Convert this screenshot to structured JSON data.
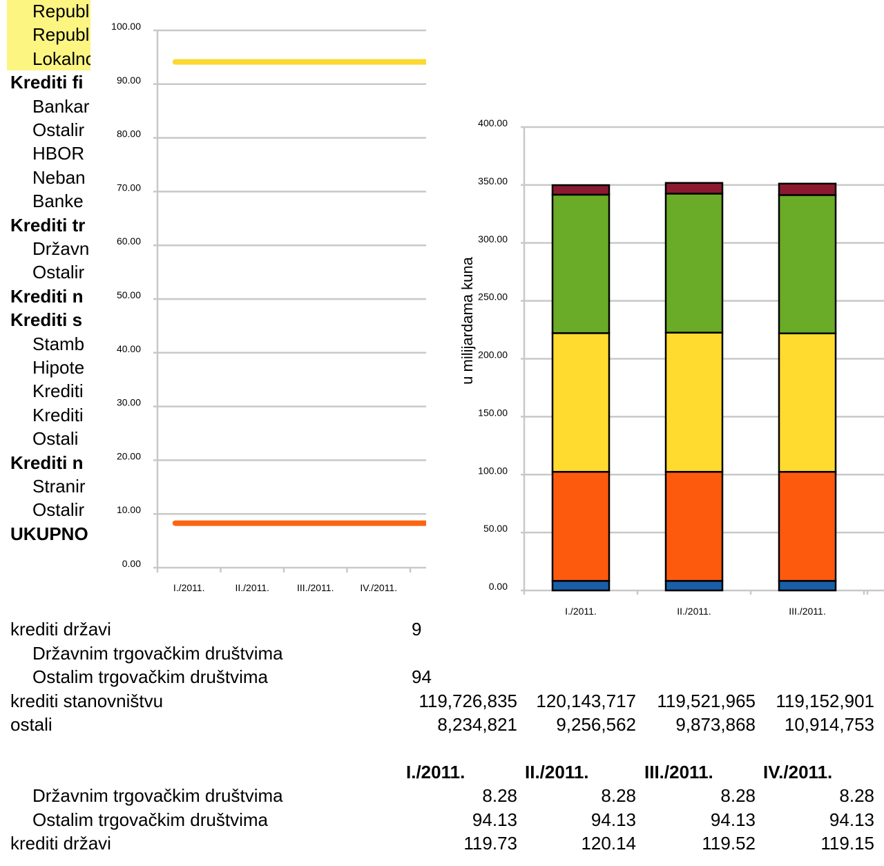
{
  "left_labels": [
    {
      "text": "Republic",
      "bold": false,
      "indent": true,
      "highlight": true
    },
    {
      "text": "Republic",
      "bold": false,
      "indent": true,
      "highlight": true
    },
    {
      "text": "Lokalno",
      "bold": false,
      "indent": true,
      "highlight": true
    },
    {
      "text": "Krediti fi",
      "bold": true,
      "indent": false
    },
    {
      "text": "Bankar",
      "bold": false,
      "indent": true
    },
    {
      "text": "Ostalir",
      "bold": false,
      "indent": true
    },
    {
      "text": "HBOR",
      "bold": false,
      "indent": true
    },
    {
      "text": "Neban",
      "bold": false,
      "indent": true
    },
    {
      "text": "Banke",
      "bold": false,
      "indent": true
    },
    {
      "text": "Krediti tr",
      "bold": true,
      "indent": false
    },
    {
      "text": "Državn",
      "bold": false,
      "indent": true
    },
    {
      "text": "Ostalir",
      "bold": false,
      "indent": true
    },
    {
      "text": "Krediti n",
      "bold": true,
      "indent": false
    },
    {
      "text": "Krediti s",
      "bold": true,
      "indent": false
    },
    {
      "text": "Stamb",
      "bold": false,
      "indent": true
    },
    {
      "text": "Hipote",
      "bold": false,
      "indent": true
    },
    {
      "text": "Krediti",
      "bold": false,
      "indent": true
    },
    {
      "text": "Krediti",
      "bold": false,
      "indent": true
    },
    {
      "text": "Ostali",
      "bold": false,
      "indent": true
    },
    {
      "text": "Krediti n",
      "bold": true,
      "indent": false
    },
    {
      "text": "Stranir",
      "bold": false,
      "indent": true
    },
    {
      "text": "Ostalir",
      "bold": false,
      "indent": true
    },
    {
      "text": "UKUPNO",
      "bold": true,
      "indent": false
    }
  ],
  "table1": {
    "rows": [
      {
        "label": "krediti državi",
        "indent": false,
        "values": [
          "",
          "",
          "",
          ""
        ],
        "partial": "9"
      },
      {
        "label": "Državnim trgovačkim društvima",
        "indent": true,
        "values": [
          "",
          "",
          "",
          ""
        ],
        "partial": ""
      },
      {
        "label": "Ostalim trgovačkim društvima",
        "indent": true,
        "values": [
          "",
          "",
          "",
          ""
        ],
        "partial": "94"
      },
      {
        "label": "krediti stanovništvu",
        "indent": false,
        "values": [
          "119,726,835",
          "120,143,717",
          "119,521,965",
          "119,152,901"
        ]
      },
      {
        "label": "ostali",
        "indent": false,
        "values": [
          "8,234,821",
          "9,256,562",
          "9,873,868",
          "10,914,753"
        ]
      }
    ]
  },
  "table2": {
    "headers": [
      "I./2011.",
      "II./2011.",
      "III./2011.",
      "IV./2011."
    ],
    "rows": [
      {
        "label": "Državnim trgovačkim društvima",
        "indent": true,
        "values": [
          "8.28",
          "8.28",
          "8.28",
          "8.28"
        ]
      },
      {
        "label": "Ostalim trgovačkim društvima",
        "indent": true,
        "values": [
          "94.13",
          "94.13",
          "94.13",
          "94.13"
        ]
      },
      {
        "label": "krediti državi",
        "indent": false,
        "values": [
          "119.73",
          "120.14",
          "119.52",
          "119.15"
        ]
      }
    ]
  },
  "chart_data": [
    {
      "type": "line",
      "x": [
        "I./2011.",
        "II./2011.",
        "III./2011.",
        "IV./2011."
      ],
      "ylim": [
        0,
        100
      ],
      "yticks": [
        "0.00",
        "10.00",
        "20.00",
        "30.00",
        "40.00",
        "50.00",
        "60.00",
        "70.00",
        "80.00",
        "90.00",
        "100.00"
      ],
      "series": [
        {
          "values": [
            94.13,
            94.13,
            94.13,
            94.13
          ],
          "color": "#fbd832"
        },
        {
          "values": [
            8.28,
            8.28,
            8.28,
            8.28
          ],
          "color": "#fc6612"
        }
      ],
      "grid": true,
      "xlabel": "",
      "ylabel": ""
    },
    {
      "type": "bar",
      "stacked": true,
      "categories": [
        "I./2011.",
        "II./2011.",
        "III./2011."
      ],
      "ylim": [
        0,
        400
      ],
      "yticks": [
        "0.00",
        "50.00",
        "100.00",
        "150.00",
        "200.00",
        "250.00",
        "300.00",
        "350.00",
        "400.00"
      ],
      "ylabel": "u milijardama kuna",
      "xlabel": "",
      "grid": true,
      "series": [
        {
          "values": [
            8.28,
            8.28,
            8.28
          ],
          "color": "#1b5ea8"
        },
        {
          "values": [
            94.13,
            94.13,
            94.13
          ],
          "color": "#fe5a0e"
        },
        {
          "values": [
            119.73,
            120.14,
            119.52
          ],
          "color": "#fedb2e"
        },
        {
          "values": [
            119.5,
            120.0,
            119.4
          ],
          "color": "#6aab27"
        },
        {
          "values": [
            8.23,
            9.26,
            9.87
          ],
          "color": "#8b1a30"
        }
      ]
    }
  ]
}
